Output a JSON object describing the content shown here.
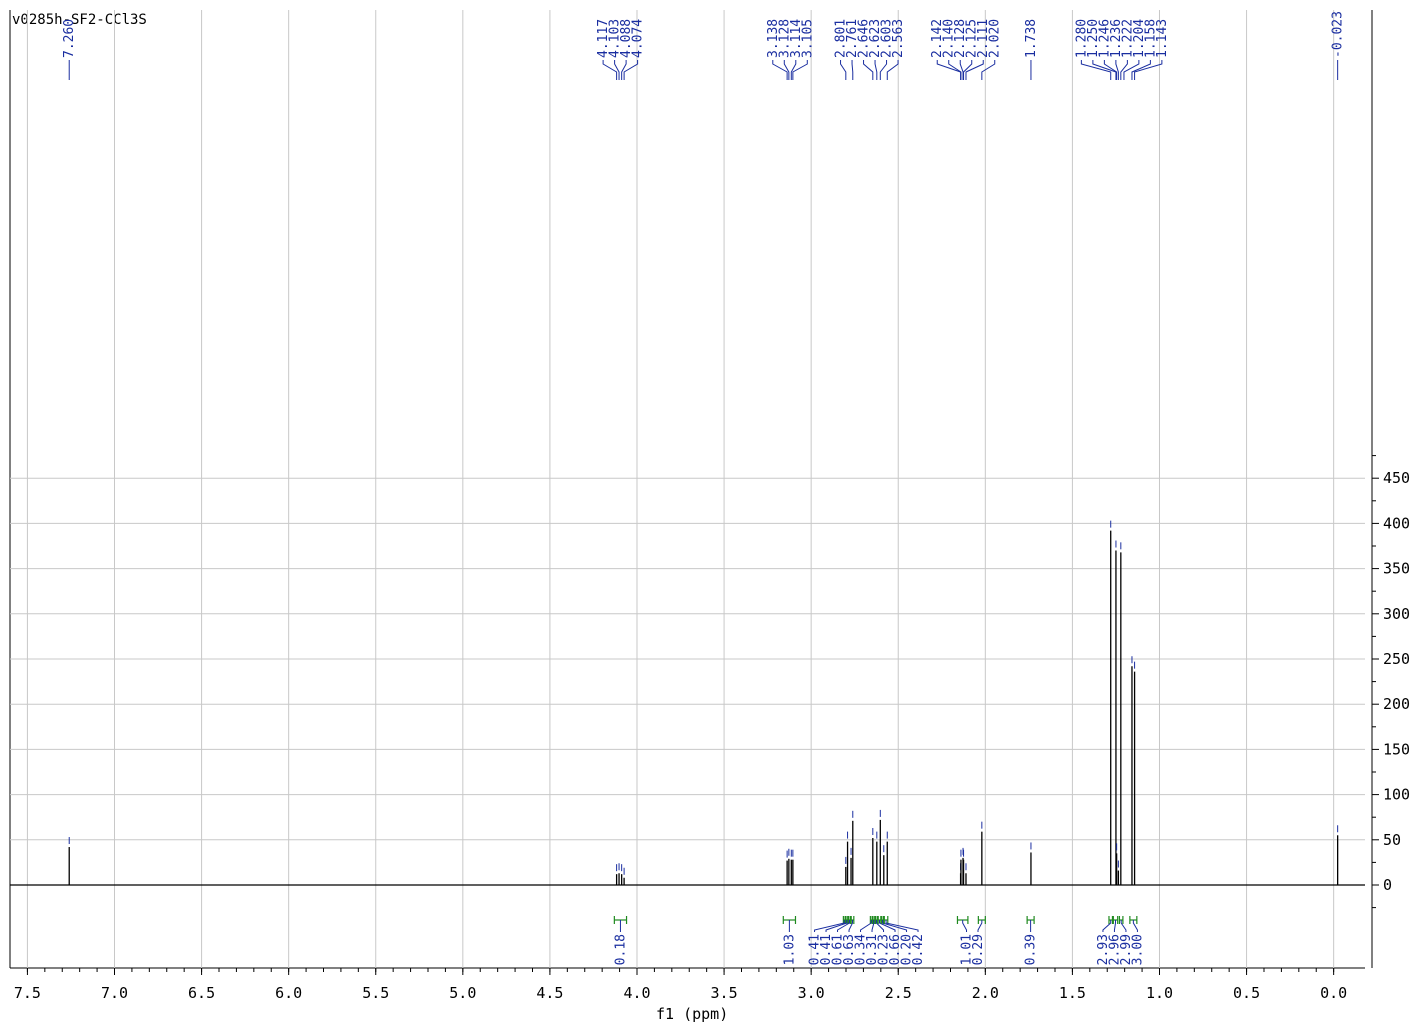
{
  "title": "v0285h-SF2-CCl3S",
  "colors": {
    "spectrum": "#000000",
    "annotation": "#1a2ea0",
    "integral": "#1f8a1f",
    "grid": "#c8c8c8"
  },
  "chart_data": {
    "type": "line",
    "xlabel": "f1 (ppm)",
    "ylabel": "",
    "xlim": [
      7.6,
      -0.18
    ],
    "ylim": [
      -45,
      485
    ],
    "x_reversed": true,
    "grid": true,
    "x_ticks": [
      "7.5",
      "7.0",
      "6.5",
      "6.0",
      "5.5",
      "5.0",
      "4.5",
      "4.0",
      "3.5",
      "3.0",
      "2.5",
      "2.0",
      "1.5",
      "1.0",
      "0.5",
      "0.0"
    ],
    "y_ticks": [
      "0",
      "50",
      "100",
      "150",
      "200",
      "250",
      "300",
      "350",
      "400",
      "450"
    ],
    "peaks": [
      {
        "ppm": 7.26,
        "height": 42
      },
      {
        "ppm": 4.117,
        "height": 12
      },
      {
        "ppm": 4.103,
        "height": 13
      },
      {
        "ppm": 4.088,
        "height": 12
      },
      {
        "ppm": 4.074,
        "height": 8
      },
      {
        "ppm": 3.138,
        "height": 27
      },
      {
        "ppm": 3.128,
        "height": 29
      },
      {
        "ppm": 3.114,
        "height": 28
      },
      {
        "ppm": 3.105,
        "height": 28
      },
      {
        "ppm": 2.801,
        "height": 20
      },
      {
        "ppm": 2.791,
        "height": 48
      },
      {
        "ppm": 2.771,
        "height": 30
      },
      {
        "ppm": 2.761,
        "height": 71
      },
      {
        "ppm": 2.646,
        "height": 52
      },
      {
        "ppm": 2.623,
        "height": 48
      },
      {
        "ppm": 2.603,
        "height": 72
      },
      {
        "ppm": 2.583,
        "height": 33
      },
      {
        "ppm": 2.563,
        "height": 48
      },
      {
        "ppm": 2.142,
        "height": 13
      },
      {
        "ppm": 2.14,
        "height": 28
      },
      {
        "ppm": 2.128,
        "height": 30
      },
      {
        "ppm": 2.125,
        "height": 28
      },
      {
        "ppm": 2.111,
        "height": 13
      },
      {
        "ppm": 2.02,
        "height": 59
      },
      {
        "ppm": 1.738,
        "height": 36
      },
      {
        "ppm": 1.28,
        "height": 392
      },
      {
        "ppm": 1.25,
        "height": 370
      },
      {
        "ppm": 1.246,
        "height": 35
      },
      {
        "ppm": 1.236,
        "height": 16
      },
      {
        "ppm": 1.222,
        "height": 368
      },
      {
        "ppm": 1.158,
        "height": 242
      },
      {
        "ppm": 1.143,
        "height": 236
      },
      {
        "ppm": -0.023,
        "height": 55
      }
    ],
    "peak_labels": [
      {
        "text": "7.260",
        "anchor": 7.26
      },
      {
        "text": "4.117",
        "anchor": 4.117
      },
      {
        "text": "4.103",
        "anchor": 4.103
      },
      {
        "text": "4.088",
        "anchor": 4.088
      },
      {
        "text": "4.074",
        "anchor": 4.074
      },
      {
        "text": "3.138",
        "anchor": 3.138
      },
      {
        "text": "3.128",
        "anchor": 3.128
      },
      {
        "text": "3.114",
        "anchor": 3.114
      },
      {
        "text": "3.105",
        "anchor": 3.105
      },
      {
        "text": "2.801",
        "anchor": 2.801
      },
      {
        "text": "2.761",
        "anchor": 2.761
      },
      {
        "text": "2.646",
        "anchor": 2.646
      },
      {
        "text": "2.623",
        "anchor": 2.623
      },
      {
        "text": "2.603",
        "anchor": 2.603
      },
      {
        "text": "2.563",
        "anchor": 2.563
      },
      {
        "text": "2.142",
        "anchor": 2.142
      },
      {
        "text": "2.140",
        "anchor": 2.14
      },
      {
        "text": "2.128",
        "anchor": 2.128
      },
      {
        "text": "2.125",
        "anchor": 2.125
      },
      {
        "text": "2.111",
        "anchor": 2.111
      },
      {
        "text": "2.020",
        "anchor": 2.02
      },
      {
        "text": "1.738",
        "anchor": 1.738
      },
      {
        "text": "1.280",
        "anchor": 1.28
      },
      {
        "text": "1.250",
        "anchor": 1.25
      },
      {
        "text": "1.246",
        "anchor": 1.246
      },
      {
        "text": "1.236",
        "anchor": 1.236
      },
      {
        "text": "1.222",
        "anchor": 1.222
      },
      {
        "text": "1.204",
        "anchor": 1.204
      },
      {
        "text": "1.158",
        "anchor": 1.158
      },
      {
        "text": "1.143",
        "anchor": 1.143
      },
      {
        "text": "-0.023",
        "anchor": -0.023
      }
    ],
    "integrals": [
      {
        "label": "0.18",
        "from": 4.13,
        "to": 4.06
      },
      {
        "label": "1.03",
        "from": 3.16,
        "to": 3.09
      },
      {
        "label": "0.41",
        "from": 2.815,
        "to": 2.805
      },
      {
        "label": "0.41",
        "from": 2.8,
        "to": 2.79
      },
      {
        "label": "0.61",
        "from": 2.785,
        "to": 2.775
      },
      {
        "label": "0.63",
        "from": 2.77,
        "to": 2.755
      },
      {
        "label": "0.34",
        "from": 2.66,
        "to": 2.65
      },
      {
        "label": "0.31",
        "from": 2.645,
        "to": 2.635
      },
      {
        "label": "0.23",
        "from": 2.63,
        "to": 2.62
      },
      {
        "label": "0.66",
        "from": 2.615,
        "to": 2.6
      },
      {
        "label": "0.20",
        "from": 2.595,
        "to": 2.585
      },
      {
        "label": "0.42",
        "from": 2.58,
        "to": 2.56
      },
      {
        "label": "1.01",
        "from": 2.16,
        "to": 2.1
      },
      {
        "label": "0.29",
        "from": 2.04,
        "to": 2.0
      },
      {
        "label": "0.39",
        "from": 1.76,
        "to": 1.72
      },
      {
        "label": "2.93",
        "from": 1.29,
        "to": 1.27
      },
      {
        "label": "2.96",
        "from": 1.265,
        "to": 1.24
      },
      {
        "label": "2.99",
        "from": 1.23,
        "to": 1.21
      },
      {
        "label": "3.00",
        "from": 1.17,
        "to": 1.13
      }
    ]
  }
}
